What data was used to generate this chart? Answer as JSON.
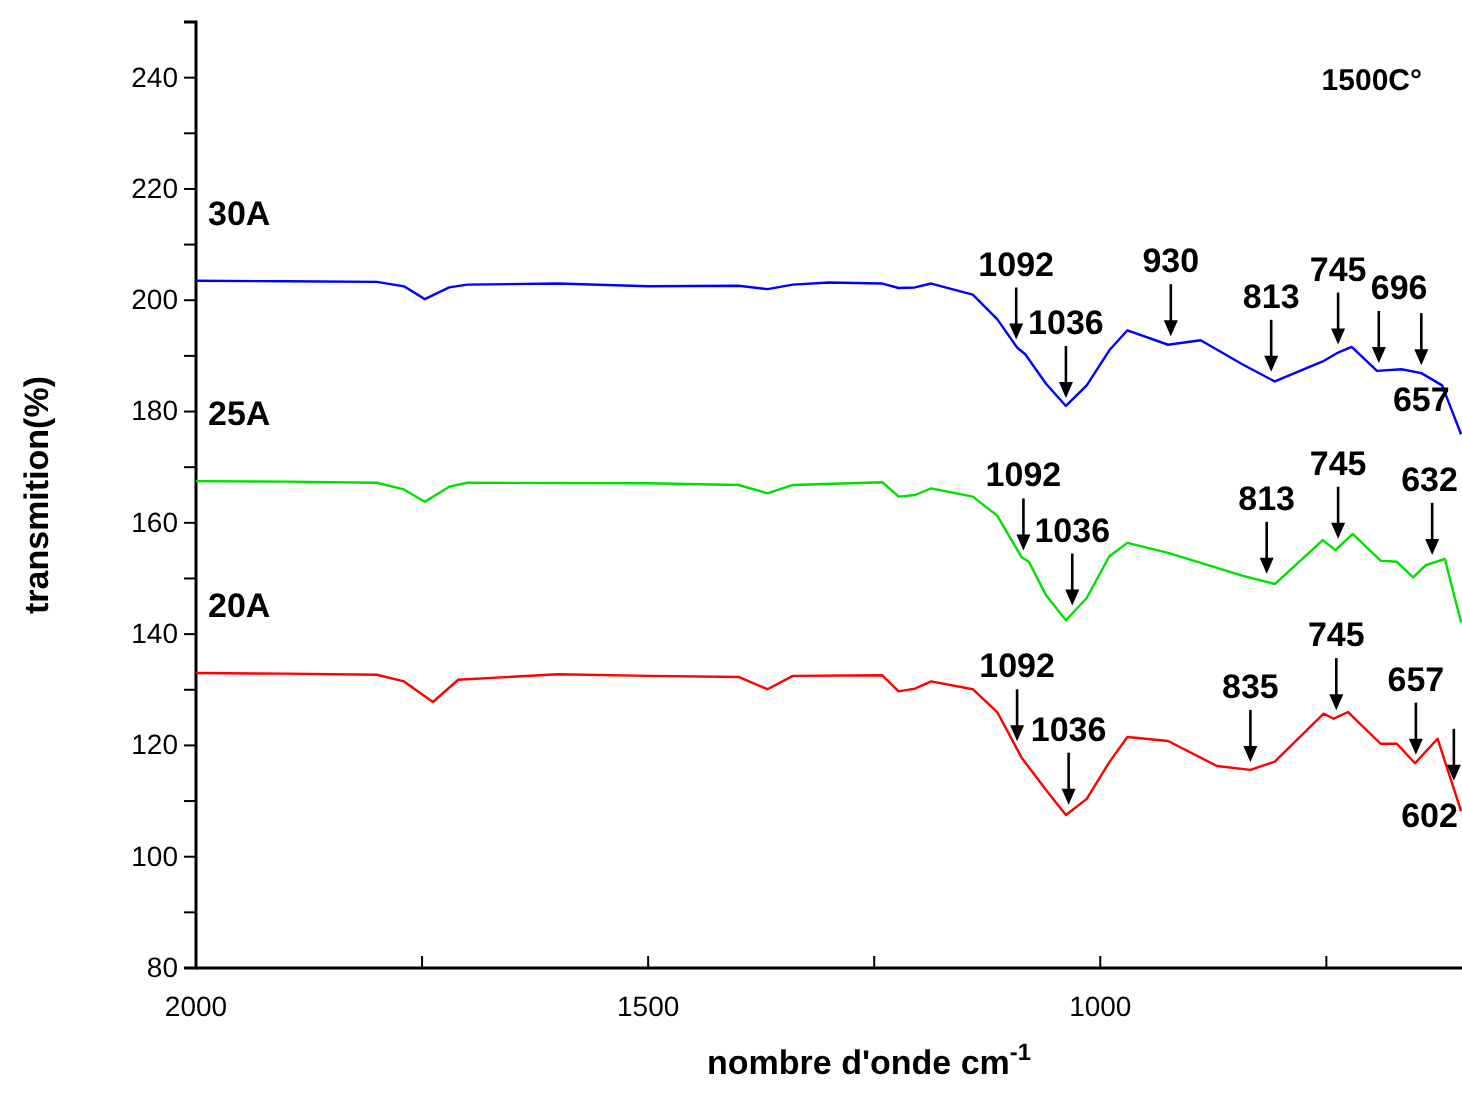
{
  "chart_data": {
    "type": "line",
    "xlabel": "nombre d'onde cm$^{-1}$",
    "ylabel": "transmition(%)",
    "xlim": [
      2000,
      600
    ],
    "xticks": [
      2000,
      {
        "value": 1750,
        "label": null
      },
      1500,
      {
        "value": 1250,
        "label": null
      },
      1000,
      {
        "value": 750,
        "label": null
      }
    ],
    "ylim": [
      80,
      250
    ],
    "yticks": [
      80,
      {
        "value": 90,
        "label": null
      },
      100,
      {
        "value": 110,
        "label": null
      },
      120,
      {
        "value": 130,
        "label": null
      },
      140,
      {
        "value": 150,
        "label": null
      },
      160,
      {
        "value": 170,
        "label": null
      },
      180,
      {
        "value": 190,
        "label": null
      },
      200,
      {
        "value": 210,
        "label": null
      },
      220,
      {
        "value": 230,
        "label": null
      },
      240,
      {
        "value": 250,
        "label": null
      }
    ],
    "grid": false,
    "series": [
      {
        "name": "30A",
        "color": "#0000ff",
        "x": [
          2000,
          1900,
          1800,
          1770,
          1747,
          1720,
          1700,
          1600,
          1500,
          1400,
          1368,
          1340,
          1300,
          1241,
          1223,
          1205,
          1187,
          1141,
          1114,
          1092,
          1083,
          1060,
          1038,
          1015,
          990,
          970,
          925,
          889,
          843,
          807,
          754,
          737,
          722,
          694,
          667,
          645,
          622,
          601
        ],
        "values": [
          203.5,
          203.4,
          203.3,
          202.5,
          200.2,
          202.3,
          202.8,
          203,
          202.5,
          202.6,
          202,
          202.8,
          203.2,
          203,
          202.2,
          202.3,
          203,
          201,
          196.6,
          191.5,
          190.3,
          185,
          181,
          184.7,
          191,
          194.6,
          192,
          192.8,
          188.5,
          185.4,
          189,
          190.6,
          191.6,
          187.3,
          187.6,
          186.9,
          184.7,
          175.9
        ]
      },
      {
        "name": "25A",
        "color": "#00e000",
        "x": [
          2000,
          1900,
          1800,
          1770,
          1747,
          1720,
          1700,
          1500,
          1400,
          1368,
          1340,
          1241,
          1223,
          1205,
          1187,
          1141,
          1114,
          1087,
          1079,
          1060,
          1038,
          1015,
          990,
          970,
          925,
          843,
          807,
          754,
          740,
          721,
          690,
          672,
          654,
          640,
          619,
          601
        ],
        "values": [
          167.5,
          167.4,
          167.2,
          166,
          163.8,
          166.5,
          167.2,
          167.1,
          166.8,
          165.3,
          166.8,
          167.3,
          164.7,
          165,
          166.2,
          164.7,
          161.3,
          153.8,
          153,
          147,
          142.5,
          146.5,
          154,
          156.4,
          154.6,
          150.5,
          149,
          156.9,
          155.1,
          158,
          153.2,
          153,
          150.2,
          152.4,
          153.5,
          142.1
        ]
      },
      {
        "name": "20A",
        "color": "#ff0000",
        "x": [
          2000,
          1900,
          1800,
          1770,
          1738,
          1710,
          1600,
          1500,
          1400,
          1368,
          1340,
          1241,
          1223,
          1205,
          1187,
          1141,
          1114,
          1087,
          1060,
          1038,
          1015,
          990,
          970,
          925,
          871,
          834,
          807,
          753,
          742,
          726,
          690,
          672,
          652,
          627,
          601
        ],
        "values": [
          133,
          132.9,
          132.7,
          131.5,
          127.8,
          131.8,
          132.8,
          132.5,
          132.3,
          130.1,
          132.5,
          132.6,
          129.7,
          130.2,
          131.5,
          130.1,
          126,
          117.8,
          112,
          107.5,
          110.4,
          117,
          121.5,
          120.8,
          116.3,
          115.6,
          117.1,
          125.7,
          124.8,
          126,
          120.3,
          120.3,
          116.8,
          121.2,
          108.2
        ]
      }
    ],
    "annotations": [
      "1500C°",
      {
        "text": "1092",
        "x": 1093,
        "y": 191.5
      },
      {
        "text": "1036",
        "x": 1038,
        "y": 181
      },
      {
        "text": "930",
        "x": 922,
        "y": 192.1
      },
      {
        "text": "813",
        "x": 811,
        "y": 185.7
      },
      {
        "text": "745",
        "x": 737,
        "y": 190.6
      },
      {
        "text": "696",
        "x": 692,
        "y": 187.3
      },
      {
        "text": "657",
        "x": 645,
        "y": 186.9
      },
      {
        "text": "1092",
        "x": 1085,
        "y": 153.6
      },
      {
        "text": "1036",
        "x": 1031,
        "y": 143.7
      },
      {
        "text": "813",
        "x": 816,
        "y": 149.4
      },
      {
        "text": "745",
        "x": 737,
        "y": 155.7
      },
      {
        "text": "632",
        "x": 633,
        "y": 152.8
      },
      {
        "text": "1092",
        "x": 1092,
        "y": 119.3
      },
      {
        "text": "1036",
        "x": 1035,
        "y": 107.9
      },
      {
        "text": "835",
        "x": 834,
        "y": 115.6
      },
      {
        "text": "745",
        "x": 739,
        "y": 124.9
      },
      {
        "text": "657",
        "x": 651,
        "y": 116.9
      },
      {
        "text": "602",
        "x": 609,
        "y": 112.2
      }
    ]
  }
}
